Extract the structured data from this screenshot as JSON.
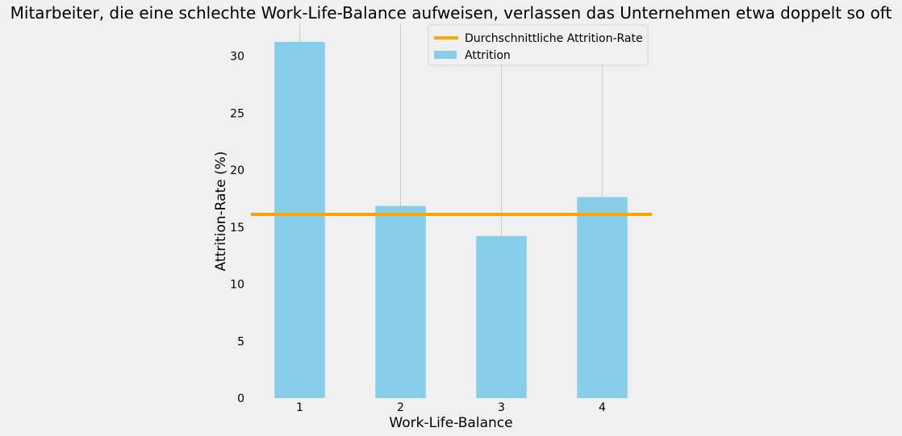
{
  "chart_data": {
    "type": "bar",
    "title": "Mitarbeiter, die eine schlechte Work-Life-Balance aufweisen, verlassen das Unternehmen etwa doppelt so oft",
    "xlabel": "Work-Life-Balance",
    "ylabel": "Attrition-Rate (%)",
    "categories": [
      "1",
      "2",
      "3",
      "4"
    ],
    "series": [
      {
        "name": "Attrition",
        "values": [
          31.25,
          16.86,
          14.22,
          17.64
        ],
        "color": "#87ceeb"
      }
    ],
    "reference_line": {
      "name": "Durchschnittliche Attrition-Rate",
      "value": 16.12,
      "color": "#ffa500"
    },
    "yticks": [
      "0",
      "5",
      "10",
      "15",
      "20",
      "25",
      "30"
    ],
    "ylim": [
      0,
      32.8
    ],
    "grid": "vertical",
    "legend_position": "top-center"
  }
}
